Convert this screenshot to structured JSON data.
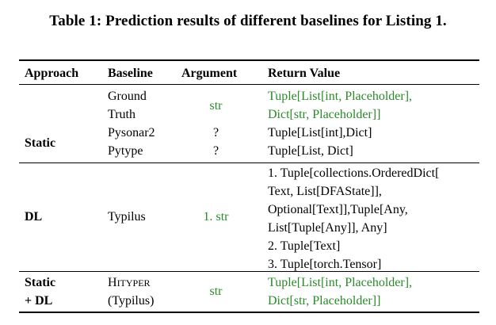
{
  "caption": "Table 1: Prediction results of different baselines for Listing 1.",
  "columns": {
    "approach": "Approach",
    "baseline": "Baseline",
    "argument": "Argument",
    "return_value": "Return Value"
  },
  "rows": {
    "ground_truth": {
      "approach": "",
      "baseline_lines": [
        "Ground",
        "Truth"
      ],
      "argument": "str",
      "return_lines": [
        "Tuple[List[int, Placeholder],",
        "Dict[str, Placeholder]]"
      ]
    },
    "static": {
      "approach": "Static",
      "pysonar2": {
        "baseline": "Pysonar2",
        "argument": "?",
        "return": "Tuple[List[int],Dict]"
      },
      "pytype": {
        "baseline": "Pytype",
        "argument": "?",
        "return": "Tuple[List, Dict]"
      }
    },
    "dl": {
      "approach": "DL",
      "baseline": "Typilus",
      "argument": "1. str",
      "return_lines": [
        "1. Tuple[collections.OrderedDict[",
        "Text, List[DFAState]],",
        "Optional[Text]],Tuple[Any,",
        "List[Tuple[Any]], Any]",
        "2. Tuple[Text]",
        "3. Tuple[torch.Tensor]"
      ]
    },
    "hybrid": {
      "approach_lines": [
        "Static",
        "+ DL"
      ],
      "baseline_first": "H",
      "baseline_rest": "ITYPER",
      "baseline_second_line": "(Typilus)",
      "argument": "str",
      "return_lines": [
        "Tuple[List[int, Placeholder],",
        "Dict[str, Placeholder]]"
      ]
    }
  }
}
